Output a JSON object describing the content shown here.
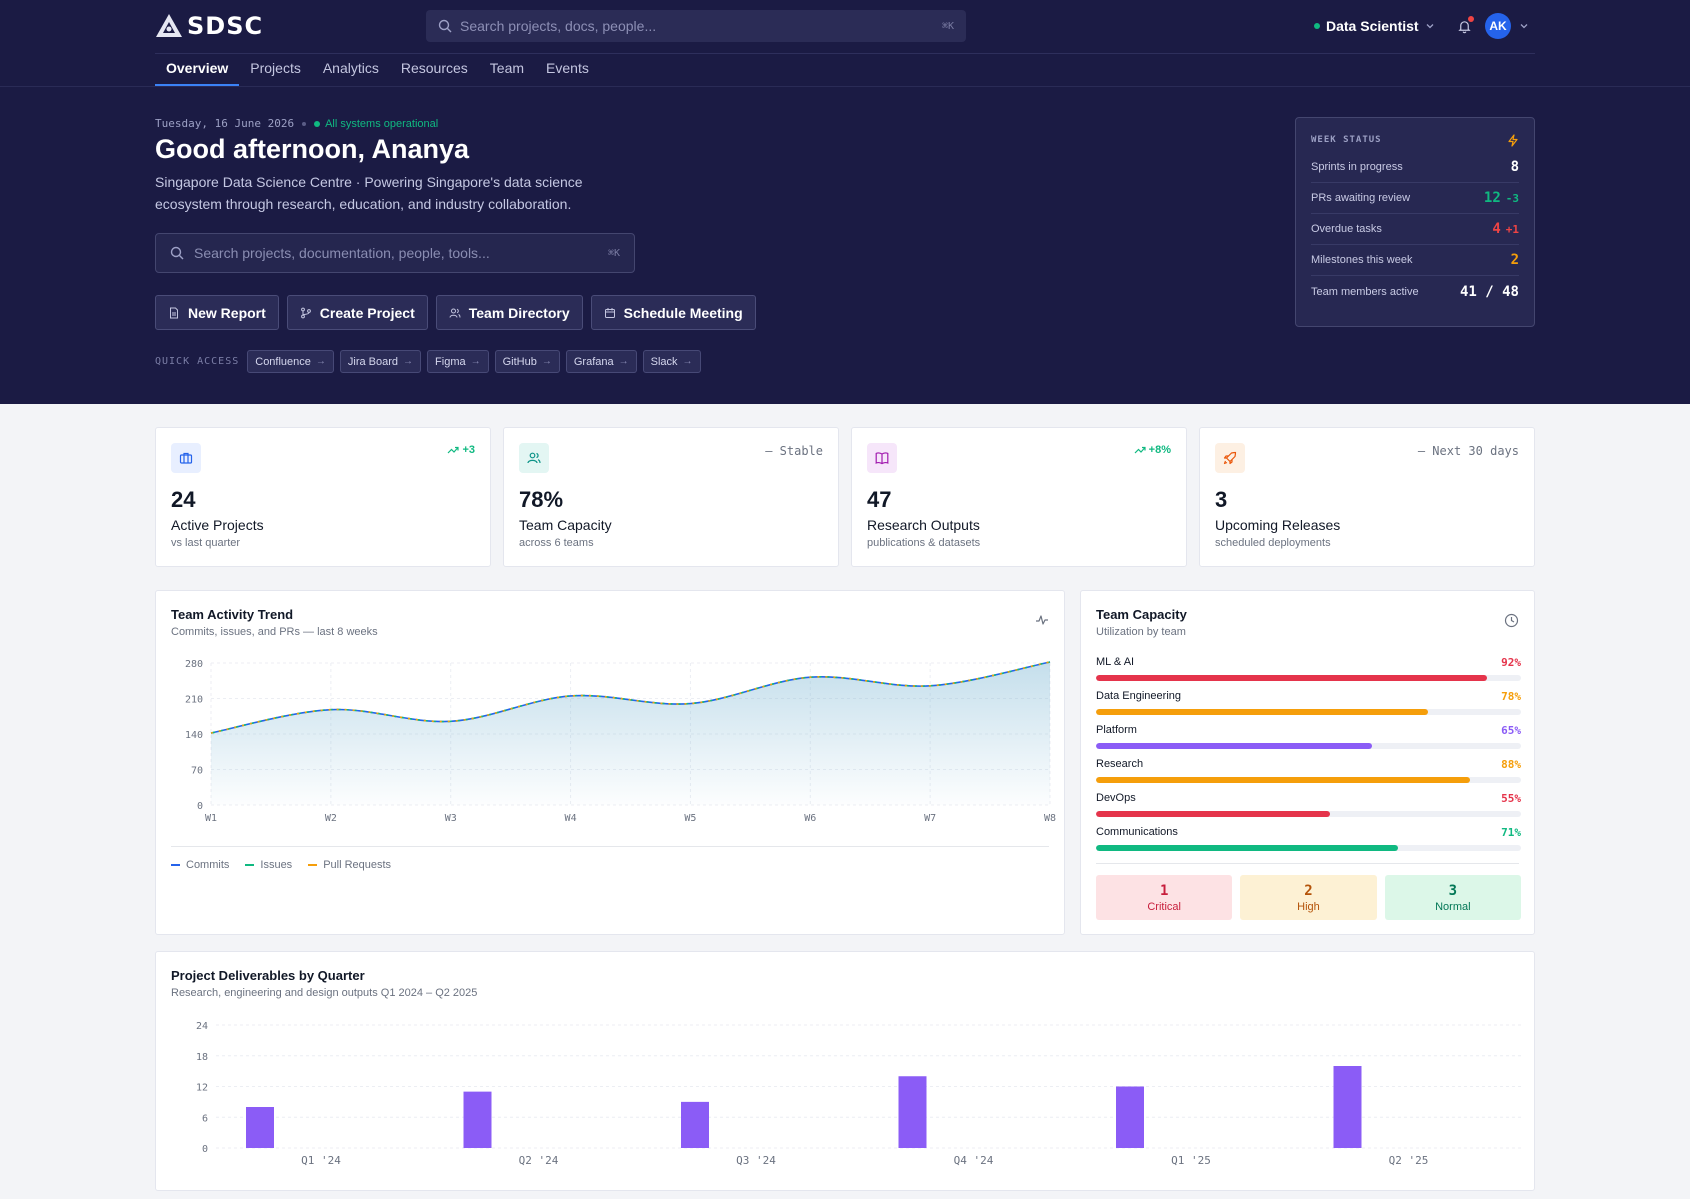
{
  "app": {
    "name": "SDSC"
  },
  "topbar": {
    "search_placeholder": "Search projects, docs, people...",
    "search_shortcut": "⌘K",
    "role": "Data Scientist",
    "avatar_initials": "AK"
  },
  "nav": {
    "tabs": [
      "Overview",
      "Projects",
      "Analytics",
      "Resources",
      "Team",
      "Events"
    ],
    "active": "Overview"
  },
  "hero": {
    "date": "Tuesday, 16 June 2026",
    "status": "All systems operational",
    "greeting": "Good afternoon, Ananya",
    "tagline": "Singapore Data Science Centre · Powering Singapore's data science ecosystem through research, education, and industry collaboration.",
    "search_placeholder": "Search projects, documentation, people, tools...",
    "search_shortcut": "⌘K",
    "actions": [
      "New Report",
      "Create Project",
      "Team Directory",
      "Schedule Meeting"
    ],
    "quick_access_label": "QUICK ACCESS",
    "quick_access": [
      "Confluence",
      "Jira Board",
      "Figma",
      "GitHub",
      "Grafana",
      "Slack"
    ]
  },
  "week_status": {
    "title": "WEEK STATUS",
    "rows": [
      {
        "label": "Sprints in progress",
        "value": "8",
        "delta": "",
        "color": "#ffffff"
      },
      {
        "label": "PRs awaiting review",
        "value": "12",
        "delta": "-3",
        "color": "#10b981"
      },
      {
        "label": "Overdue tasks",
        "value": "4",
        "delta": "+1",
        "color": "#ef4444"
      },
      {
        "label": "Milestones this week",
        "value": "2",
        "delta": "",
        "color": "#f59e0b"
      },
      {
        "label": "Team members active",
        "value": "41 / 48",
        "delta": "",
        "color": "#ffffff"
      }
    ]
  },
  "stats": [
    {
      "value": "24",
      "label": "Active Projects",
      "sub": "vs last quarter",
      "trend": "+3",
      "trend_type": "up",
      "icon": "briefcase-icon",
      "icon_color": "#2563eb",
      "icon_bg": "#e8efff"
    },
    {
      "value": "78%",
      "label": "Team Capacity",
      "sub": "across 6 teams",
      "trend": "— Stable",
      "trend_type": "flat",
      "icon": "users-icon",
      "icon_color": "#0d9488",
      "icon_bg": "#e3f6f3"
    },
    {
      "value": "47",
      "label": "Research Outputs",
      "sub": "publications & datasets",
      "trend": "+8%",
      "trend_type": "up",
      "icon": "book-icon",
      "icon_color": "#a21caf",
      "icon_bg": "#f6e6fa"
    },
    {
      "value": "3",
      "label": "Upcoming Releases",
      "sub": "scheduled deployments",
      "trend": "— Next 30 days",
      "trend_type": "flat",
      "icon": "rocket-icon",
      "icon_color": "#ea580c",
      "icon_bg": "#fdf0e3"
    }
  ],
  "trend_card": {
    "title": "Team Activity Trend",
    "subtitle": "Commits, issues, and PRs — last 8 weeks",
    "legend": [
      {
        "name": "Commits",
        "color": "#2563eb"
      },
      {
        "name": "Issues",
        "color": "#10b981"
      },
      {
        "name": "Pull Requests",
        "color": "#f59e0b"
      }
    ]
  },
  "capacity": {
    "title": "Team Capacity",
    "subtitle": "Utilization by team",
    "teams": [
      {
        "name": "ML & AI",
        "pct": 92,
        "label": "92%",
        "color": "#e5344b"
      },
      {
        "name": "Data Engineering",
        "pct": 78,
        "label": "78%",
        "color": "#f59e0b"
      },
      {
        "name": "Platform",
        "pct": 65,
        "label": "65%",
        "color": "#8b5cf6"
      },
      {
        "name": "Research",
        "pct": 88,
        "label": "88%",
        "color": "#f59e0b"
      },
      {
        "name": "DevOps",
        "pct": 55,
        "label": "55%",
        "color": "#e5344b"
      },
      {
        "name": "Communications",
        "pct": 71,
        "label": "71%",
        "color": "#10b981"
      }
    ],
    "priority": [
      {
        "count": "1",
        "label": "Critical",
        "bg": "#fde2e4",
        "fg": "#c81e3c"
      },
      {
        "count": "2",
        "label": "High",
        "bg": "#fdf1d4",
        "fg": "#b45309"
      },
      {
        "count": "3",
        "label": "Normal",
        "bg": "#dcf7e8",
        "fg": "#047857"
      }
    ]
  },
  "deliverables": {
    "title": "Project Deliverables by Quarter",
    "subtitle": "Research, engineering and design outputs Q1 2024 – Q2 2025"
  },
  "chart_data": [
    {
      "type": "area",
      "title": "Team Activity Trend",
      "x": [
        "W1",
        "W2",
        "W3",
        "W4",
        "W5",
        "W6",
        "W7",
        "W8"
      ],
      "series": [
        {
          "name": "Commits",
          "values": [
            142,
            188,
            165,
            215,
            200,
            252,
            235,
            282
          ]
        },
        {
          "name": "Issues",
          "values": [
            142,
            188,
            165,
            215,
            200,
            252,
            235,
            282
          ]
        },
        {
          "name": "Pull Requests",
          "values": [
            142,
            188,
            165,
            215,
            200,
            252,
            235,
            282
          ]
        }
      ],
      "y_ticks": [
        0,
        70,
        140,
        210,
        280
      ],
      "ylim": [
        0,
        280
      ],
      "grid": true,
      "legend": "bottom-left"
    },
    {
      "type": "bar",
      "title": "Project Deliverables by Quarter",
      "categories": [
        "Q1 '24",
        "Q2 '24",
        "Q3 '24",
        "Q4 '24",
        "Q1 '25",
        "Q2 '25"
      ],
      "values": [
        8,
        11,
        9,
        14,
        12,
        16
      ],
      "y_ticks": [
        0,
        6,
        12,
        18,
        24
      ],
      "ylim": [
        0,
        24
      ],
      "color": "#8b5cf6",
      "grid": true
    }
  ]
}
